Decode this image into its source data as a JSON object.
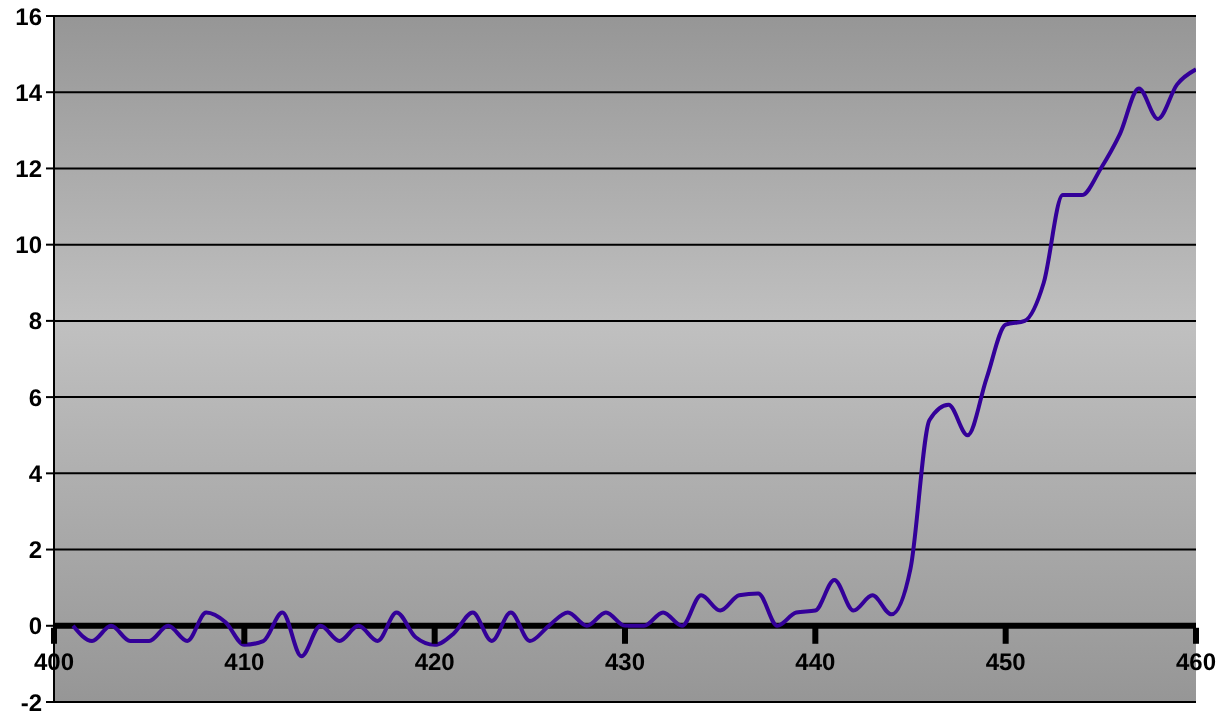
{
  "chart_data": {
    "type": "line",
    "x": [
      401,
      402,
      403,
      404,
      405,
      406,
      407,
      408,
      409,
      410,
      411,
      412,
      413,
      414,
      415,
      416,
      417,
      418,
      419,
      420,
      421,
      422,
      423,
      424,
      425,
      426,
      427,
      428,
      429,
      430,
      431,
      432,
      433,
      434,
      435,
      436,
      437,
      438,
      439,
      440,
      441,
      442,
      443,
      444,
      445,
      446,
      447,
      448,
      449,
      450,
      451,
      452,
      453,
      454,
      455,
      456,
      457,
      458,
      459,
      460
    ],
    "series": [
      {
        "color": "#330099",
        "values": [
          0,
          -0.4,
          0,
          -0.4,
          -0.4,
          0,
          -0.4,
          0.35,
          0.1,
          -0.5,
          -0.4,
          0.35,
          -0.8,
          0,
          -0.4,
          0,
          -0.4,
          0.35,
          -0.3,
          -0.5,
          -0.2,
          0.35,
          -0.4,
          0.35,
          -0.4,
          0,
          0.35,
          0,
          0.35,
          0,
          0,
          0.35,
          0,
          0.8,
          0.4,
          0.8,
          0.85,
          0,
          0.35,
          0.4,
          1.2,
          0.4,
          0.8,
          0.3,
          1.5,
          5.4,
          5.8,
          5.0,
          6.5,
          7.9,
          8.0,
          9.0,
          11.3,
          11.3,
          12.0,
          12.9,
          14.1,
          13.3,
          14.2,
          14.6
        ]
      }
    ],
    "xlim": [
      400,
      460
    ],
    "xticks": [
      400,
      410,
      420,
      430,
      440,
      450,
      460
    ],
    "ylim": [
      -2,
      16
    ],
    "yticks": [
      -2,
      0,
      2,
      4,
      6,
      8,
      10,
      12,
      14,
      16
    ],
    "grid": "y",
    "marker": "none",
    "line_style": "solid"
  }
}
